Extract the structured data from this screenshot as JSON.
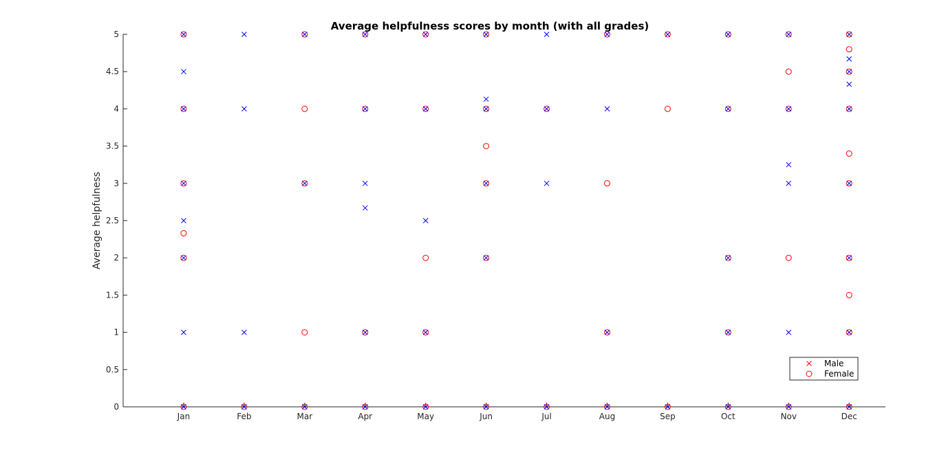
{
  "chart_data": {
    "type": "scatter",
    "title": "Average helpfulness scores by month (with all grades)",
    "xlabel": "",
    "ylabel": "Average helpfulness",
    "categories": [
      "Jan",
      "Feb",
      "Mar",
      "Apr",
      "May",
      "Jun",
      "Jul",
      "Aug",
      "Sep",
      "Oct",
      "Nov",
      "Dec"
    ],
    "xlim": [
      0,
      12.6
    ],
    "ylim": [
      0,
      5
    ],
    "yticks": [
      0,
      0.5,
      1,
      1.5,
      2,
      2.5,
      3,
      3.5,
      4,
      4.5,
      5
    ],
    "ytick_labels": [
      "0",
      "0.5",
      "1",
      "1.5",
      "2",
      "2.5",
      "3",
      "3.5",
      "4",
      "4.5",
      "5"
    ],
    "grid": false,
    "legend_position": "bottom-right",
    "series": [
      {
        "name": "Male",
        "marker": "x",
        "color": "#0000ff",
        "legend_color": "#ff0000",
        "points": [
          [
            1,
            0
          ],
          [
            1,
            1
          ],
          [
            1,
            2
          ],
          [
            1,
            2.5
          ],
          [
            1,
            3
          ],
          [
            1,
            4
          ],
          [
            1,
            4.5
          ],
          [
            1,
            5
          ],
          [
            2,
            0
          ],
          [
            2,
            1
          ],
          [
            2,
            4
          ],
          [
            2,
            5
          ],
          [
            3,
            0
          ],
          [
            3,
            3
          ],
          [
            3,
            5
          ],
          [
            4,
            0
          ],
          [
            4,
            1
          ],
          [
            4,
            2.67
          ],
          [
            4,
            3
          ],
          [
            4,
            4
          ],
          [
            4,
            5
          ],
          [
            5,
            0
          ],
          [
            5,
            1
          ],
          [
            5,
            2.5
          ],
          [
            5,
            4
          ],
          [
            5,
            5
          ],
          [
            6,
            0
          ],
          [
            6,
            2
          ],
          [
            6,
            3
          ],
          [
            6,
            4
          ],
          [
            6,
            4.13
          ],
          [
            6,
            5
          ],
          [
            7,
            0
          ],
          [
            7,
            3
          ],
          [
            7,
            4
          ],
          [
            7,
            5
          ],
          [
            8,
            0
          ],
          [
            8,
            1
          ],
          [
            8,
            4
          ],
          [
            8,
            5
          ],
          [
            9,
            0
          ],
          [
            9,
            5
          ],
          [
            10,
            0
          ],
          [
            10,
            1
          ],
          [
            10,
            2
          ],
          [
            10,
            4
          ],
          [
            10,
            5
          ],
          [
            11,
            0
          ],
          [
            11,
            1
          ],
          [
            11,
            3
          ],
          [
            11,
            3.25
          ],
          [
            11,
            4
          ],
          [
            11,
            5
          ],
          [
            12,
            0
          ],
          [
            12,
            1
          ],
          [
            12,
            2
          ],
          [
            12,
            3
          ],
          [
            12,
            4
          ],
          [
            12,
            4.33
          ],
          [
            12,
            4.5
          ],
          [
            12,
            4.67
          ],
          [
            12,
            5
          ]
        ]
      },
      {
        "name": "Female",
        "marker": "o",
        "color": "#ff0000",
        "legend_color": "#ff0000",
        "points": [
          [
            1,
            0
          ],
          [
            1,
            2
          ],
          [
            1,
            2.33
          ],
          [
            1,
            3
          ],
          [
            1,
            4
          ],
          [
            1,
            5
          ],
          [
            2,
            0
          ],
          [
            3,
            0
          ],
          [
            3,
            1
          ],
          [
            3,
            3
          ],
          [
            3,
            4
          ],
          [
            3,
            5
          ],
          [
            4,
            0
          ],
          [
            4,
            1
          ],
          [
            4,
            4
          ],
          [
            4,
            5
          ],
          [
            5,
            0
          ],
          [
            5,
            1
          ],
          [
            5,
            2
          ],
          [
            5,
            4
          ],
          [
            5,
            5
          ],
          [
            6,
            0
          ],
          [
            6,
            2
          ],
          [
            6,
            3
          ],
          [
            6,
            3.5
          ],
          [
            6,
            4
          ],
          [
            6,
            5
          ],
          [
            7,
            0
          ],
          [
            7,
            4
          ],
          [
            8,
            0
          ],
          [
            8,
            1
          ],
          [
            8,
            3
          ],
          [
            8,
            5
          ],
          [
            9,
            0
          ],
          [
            9,
            4
          ],
          [
            9,
            5
          ],
          [
            10,
            0
          ],
          [
            10,
            1
          ],
          [
            10,
            2
          ],
          [
            10,
            4
          ],
          [
            10,
            5
          ],
          [
            11,
            0
          ],
          [
            11,
            2
          ],
          [
            11,
            4
          ],
          [
            11,
            4.5
          ],
          [
            11,
            5
          ],
          [
            12,
            0
          ],
          [
            12,
            1
          ],
          [
            12,
            1.5
          ],
          [
            12,
            2
          ],
          [
            12,
            3
          ],
          [
            12,
            3.4
          ],
          [
            12,
            4
          ],
          [
            12,
            4.5
          ],
          [
            12,
            4.8
          ],
          [
            12,
            5
          ]
        ]
      }
    ]
  }
}
